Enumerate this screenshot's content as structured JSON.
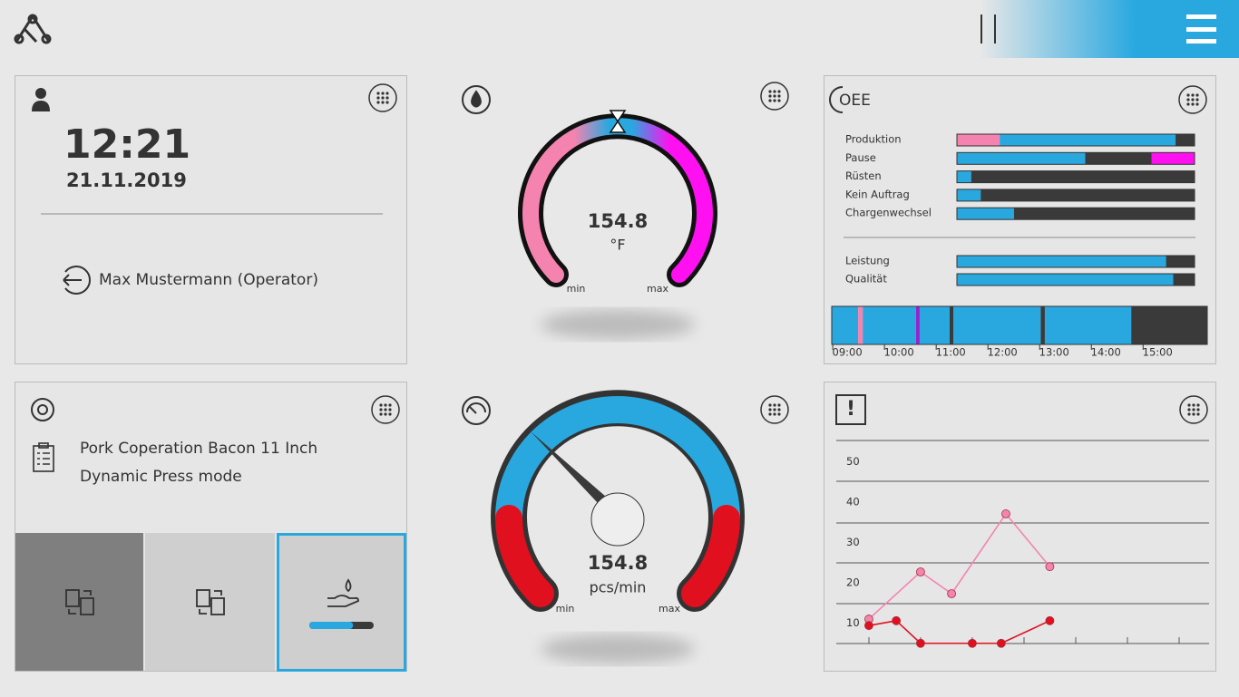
{
  "clock": {
    "time": "12:21",
    "date": "21.11.2019",
    "user": "Max Mustermann (Operator)"
  },
  "temperature": {
    "value": 154.8,
    "unit": "°F",
    "min_label": "min",
    "max_label": "max"
  },
  "job": {
    "product": "Pork Coperation Bacon 11 Inch",
    "mode": "Dynamic Press mode",
    "progress": 68
  },
  "speed": {
    "value": 154.8,
    "unit": "pcs/min",
    "min_label": "min",
    "max_label": "max"
  },
  "oee": {
    "title": "OEE",
    "rows": [
      {
        "label": "Produktion",
        "segments": [
          {
            "value": 18,
            "color": "#f583b0"
          },
          {
            "value": 74,
            "color": "#29a8e0"
          },
          {
            "value": 8,
            "color": "#3a3a3a"
          }
        ]
      },
      {
        "label": "Pause",
        "segments": [
          {
            "value": 54,
            "color": "#29a8e0"
          },
          {
            "value": 28,
            "color": "#3a3a3a"
          },
          {
            "value": 18,
            "color": "#ff10f0"
          }
        ]
      },
      {
        "label": "Rüsten",
        "segments": [
          {
            "value": 6,
            "color": "#29a8e0"
          },
          {
            "value": 94,
            "color": "#3a3a3a"
          }
        ]
      },
      {
        "label": "Kein Auftrag",
        "segments": [
          {
            "value": 10,
            "color": "#29a8e0"
          },
          {
            "value": 90,
            "color": "#3a3a3a"
          }
        ]
      },
      {
        "label": "Chargenwechsel",
        "segments": [
          {
            "value": 24,
            "color": "#29a8e0"
          },
          {
            "value": 76,
            "color": "#3a3a3a"
          }
        ]
      },
      {
        "label": "Leistung",
        "segments": [
          {
            "value": 88,
            "color": "#29a8e0"
          },
          {
            "value": 12,
            "color": "#3a3a3a"
          }
        ]
      },
      {
        "label": "Qualität",
        "segments": [
          {
            "value": 91,
            "color": "#29a8e0"
          },
          {
            "value": 9,
            "color": "#3a3a3a"
          }
        ]
      }
    ],
    "timeline": {
      "xlim": [
        8.7,
        15.96
      ],
      "xticks": [
        {
          "value": 9,
          "label": "09:00"
        },
        {
          "value": 10,
          "label": "10:00"
        },
        {
          "value": 11,
          "label": "11:00"
        },
        {
          "value": 12,
          "label": "12:00"
        },
        {
          "value": 13,
          "label": "13:00"
        },
        {
          "value": 14,
          "label": "14:00"
        },
        {
          "value": 15,
          "label": "15:00"
        }
      ],
      "segments": [
        {
          "start": 8.7,
          "end": 9.21,
          "color": "#29a8e0"
        },
        {
          "start": 9.21,
          "end": 9.3,
          "color": "#f583b0"
        },
        {
          "start": 9.3,
          "end": 10.33,
          "color": "#29a8e0"
        },
        {
          "start": 10.33,
          "end": 10.4,
          "color": "#9b1fd0"
        },
        {
          "start": 10.4,
          "end": 10.98,
          "color": "#29a8e0"
        },
        {
          "start": 10.98,
          "end": 11.05,
          "color": "#3a3a3a"
        },
        {
          "start": 11.05,
          "end": 12.74,
          "color": "#29a8e0"
        },
        {
          "start": 12.74,
          "end": 12.82,
          "color": "#3a3a3a"
        },
        {
          "start": 12.82,
          "end": 14.49,
          "color": "#29a8e0"
        },
        {
          "start": 14.49,
          "end": 15.96,
          "color": "#3a3a3a"
        }
      ]
    }
  },
  "alerts": {
    "type": "line",
    "ylim": [
      5,
      55
    ],
    "yticks": [
      10,
      20,
      30,
      40,
      50
    ],
    "xlim": [
      -0.63,
      6.58
    ],
    "series": [
      {
        "color": "#f583b0",
        "x": [
          0,
          1.0,
          1.6,
          2.65,
          3.5
        ],
        "values": [
          11.0,
          22.7,
          17.3,
          37.1,
          24.0
        ]
      },
      {
        "color": "#e0101e",
        "x": [
          0,
          0.53,
          1.0,
          2.0,
          2.56,
          3.5
        ],
        "values": [
          9.4,
          10.6,
          5,
          5,
          5,
          10.6
        ]
      }
    ]
  }
}
